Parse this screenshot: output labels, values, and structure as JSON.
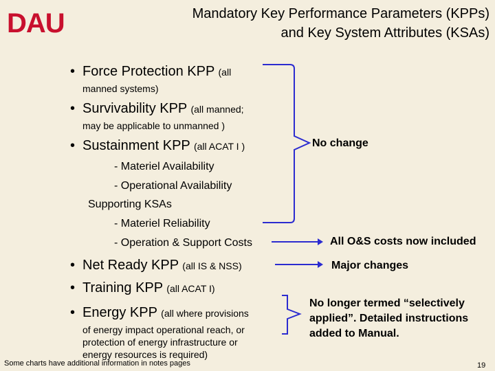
{
  "logo": {
    "text": "DAU"
  },
  "title": {
    "line1": "Mandatory Key Performance Parameters (KPPs)",
    "line2": "and Key System Attributes (KSAs)"
  },
  "bullets": [
    {
      "main": "Force Protection KPP",
      "qual": "(all",
      "cont": "manned systems)"
    },
    {
      "main": "Survivability KPP",
      "qual": "(all manned;",
      "cont": "may be applicable to unmanned )"
    },
    {
      "main": "Sustainment KPP",
      "qual": "(all ACAT I )"
    }
  ],
  "sustainment_items": [
    "- Materiel Availability",
    "- Operational Availability"
  ],
  "supporting_label": "Supporting KSAs",
  "supporting_items": [
    "- Materiel Reliability",
    "- Operation & Support Costs"
  ],
  "bullets2": [
    {
      "main": "Net Ready KPP",
      "qual": "(all IS & NSS)"
    },
    {
      "main": "Training KPP",
      "qual": "(all ACAT I)"
    },
    {
      "main": "Energy KPP",
      "qual": "(all where provisions"
    }
  ],
  "energy_cont": [
    "of energy impact operational reach, or",
    "protection of energy infrastructure or",
    "energy resources is required)"
  ],
  "right_notes": {
    "no_change": "No change",
    "os_costs": "All O&S costs now included",
    "major": "Major changes",
    "energy": [
      "No longer termed “selectively",
      "applied”. Detailed instructions",
      "added to Manual."
    ]
  },
  "footer": "Some charts have additional information in notes pages",
  "page_number": "19",
  "colors": {
    "logo_red": "#c8102e",
    "bracket_blue": "#2b2bd0",
    "background": "#f4eede"
  }
}
